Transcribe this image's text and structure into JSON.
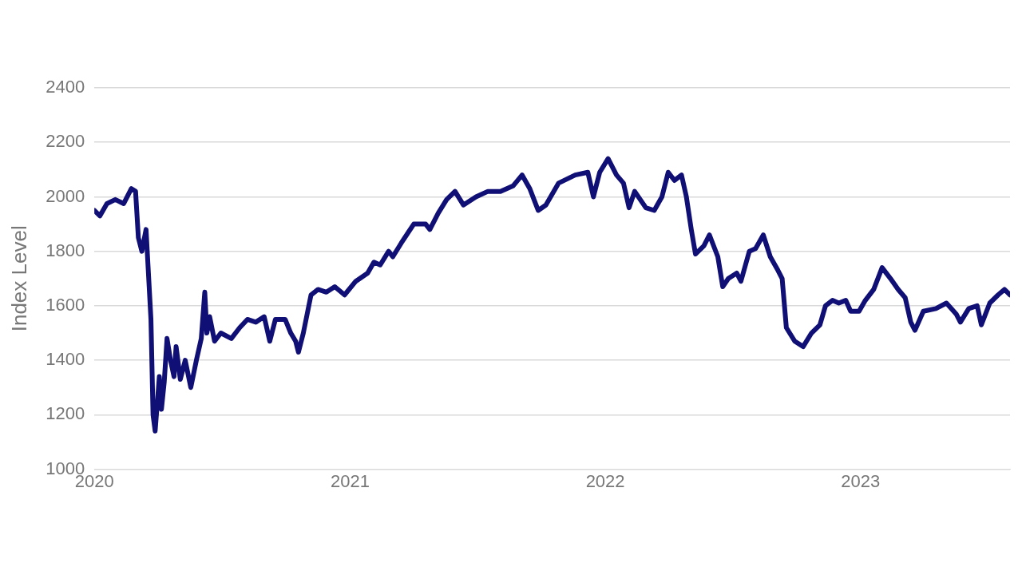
{
  "chart_data": {
    "type": "line",
    "ylabel": "Index Level",
    "ylim": [
      1000,
      2400
    ],
    "yticks": [
      1000,
      1200,
      1400,
      1600,
      1800,
      2000,
      2200,
      2400
    ],
    "xlim": [
      "2020-01-01",
      "2023-08-03"
    ],
    "xticks": [
      "2020",
      "2021",
      "2022",
      "2023"
    ],
    "grid": "y",
    "legend": false,
    "marker": "none",
    "line_style": "solid",
    "series": [
      {
        "color": "#0f0f75",
        "x": [
          "2020-01-01",
          "2020-01-09",
          "2020-01-19",
          "2020-01-31",
          "2020-02-12",
          "2020-02-23",
          "2020-02-29",
          "2020-03-04",
          "2020-03-09",
          "2020-03-15",
          "2020-03-22",
          "2020-03-25",
          "2020-03-28",
          "2020-04-03",
          "2020-04-06",
          "2020-04-10",
          "2020-04-14",
          "2020-04-19",
          "2020-04-24",
          "2020-04-27",
          "2020-05-03",
          "2020-05-10",
          "2020-05-18",
          "2020-05-26",
          "2020-06-02",
          "2020-06-07",
          "2020-06-10",
          "2020-06-14",
          "2020-06-21",
          "2020-06-30",
          "2020-07-15",
          "2020-07-27",
          "2020-08-07",
          "2020-08-19",
          "2020-08-31",
          "2020-09-08",
          "2020-09-16",
          "2020-09-30",
          "2020-10-08",
          "2020-10-15",
          "2020-10-19",
          "2020-10-26",
          "2020-11-06",
          "2020-11-16",
          "2020-11-28",
          "2020-12-10",
          "2020-12-24",
          "2021-01-09",
          "2021-01-26",
          "2021-02-04",
          "2021-02-13",
          "2021-02-25",
          "2021-03-03",
          "2021-03-15",
          "2021-04-02",
          "2021-04-19",
          "2021-04-25",
          "2021-05-07",
          "2021-05-19",
          "2021-05-31",
          "2021-06-12",
          "2021-06-30",
          "2021-07-17",
          "2021-08-04",
          "2021-08-22",
          "2021-09-04",
          "2021-09-15",
          "2021-09-27",
          "2021-10-08",
          "2021-10-26",
          "2021-11-19",
          "2021-12-07",
          "2021-12-15",
          "2021-12-24",
          "2022-01-05",
          "2022-01-17",
          "2022-01-27",
          "2022-02-04",
          "2022-02-12",
          "2022-02-28",
          "2022-03-12",
          "2022-03-23",
          "2022-04-01",
          "2022-04-10",
          "2022-04-20",
          "2022-04-27",
          "2022-05-04",
          "2022-05-10",
          "2022-05-22",
          "2022-05-30",
          "2022-06-11",
          "2022-06-18",
          "2022-06-26",
          "2022-07-08",
          "2022-07-14",
          "2022-07-26",
          "2022-08-04",
          "2022-08-15",
          "2022-08-25",
          "2022-09-05",
          "2022-09-11",
          "2022-09-17",
          "2022-09-29",
          "2022-10-11",
          "2022-10-23",
          "2022-11-04",
          "2022-11-12",
          "2022-11-22",
          "2022-12-01",
          "2022-12-11",
          "2022-12-18",
          "2022-12-30",
          "2023-01-08",
          "2023-01-20",
          "2023-02-01",
          "2023-02-13",
          "2023-02-24",
          "2023-03-06",
          "2023-03-14",
          "2023-03-20",
          "2023-04-01",
          "2023-04-19",
          "2023-05-04",
          "2023-05-18",
          "2023-05-24",
          "2023-06-05",
          "2023-06-17",
          "2023-06-23",
          "2023-07-05",
          "2023-07-17",
          "2023-07-26",
          "2023-08-03"
        ],
        "values": [
          1950,
          1930,
          1975,
          1990,
          1975,
          2030,
          2020,
          1850,
          1800,
          1880,
          1550,
          1200,
          1140,
          1340,
          1220,
          1320,
          1480,
          1400,
          1340,
          1450,
          1330,
          1400,
          1300,
          1400,
          1480,
          1650,
          1500,
          1560,
          1470,
          1500,
          1480,
          1520,
          1550,
          1540,
          1560,
          1470,
          1550,
          1550,
          1500,
          1470,
          1430,
          1500,
          1640,
          1660,
          1650,
          1670,
          1640,
          1690,
          1720,
          1760,
          1750,
          1800,
          1780,
          1830,
          1900,
          1900,
          1880,
          1940,
          1990,
          2020,
          1970,
          2000,
          2020,
          2020,
          2040,
          2080,
          2030,
          1950,
          1970,
          2050,
          2080,
          2090,
          2000,
          2090,
          2140,
          2080,
          2050,
          1960,
          2020,
          1960,
          1950,
          2000,
          2090,
          2060,
          2080,
          2000,
          1880,
          1790,
          1820,
          1860,
          1780,
          1670,
          1700,
          1720,
          1690,
          1800,
          1810,
          1860,
          1780,
          1730,
          1700,
          1520,
          1470,
          1450,
          1500,
          1530,
          1600,
          1620,
          1610,
          1620,
          1580,
          1580,
          1620,
          1660,
          1740,
          1700,
          1660,
          1630,
          1540,
          1510,
          1580,
          1590,
          1610,
          1570,
          1540,
          1590,
          1600,
          1530,
          1610,
          1640,
          1660,
          1640
        ]
      }
    ]
  }
}
